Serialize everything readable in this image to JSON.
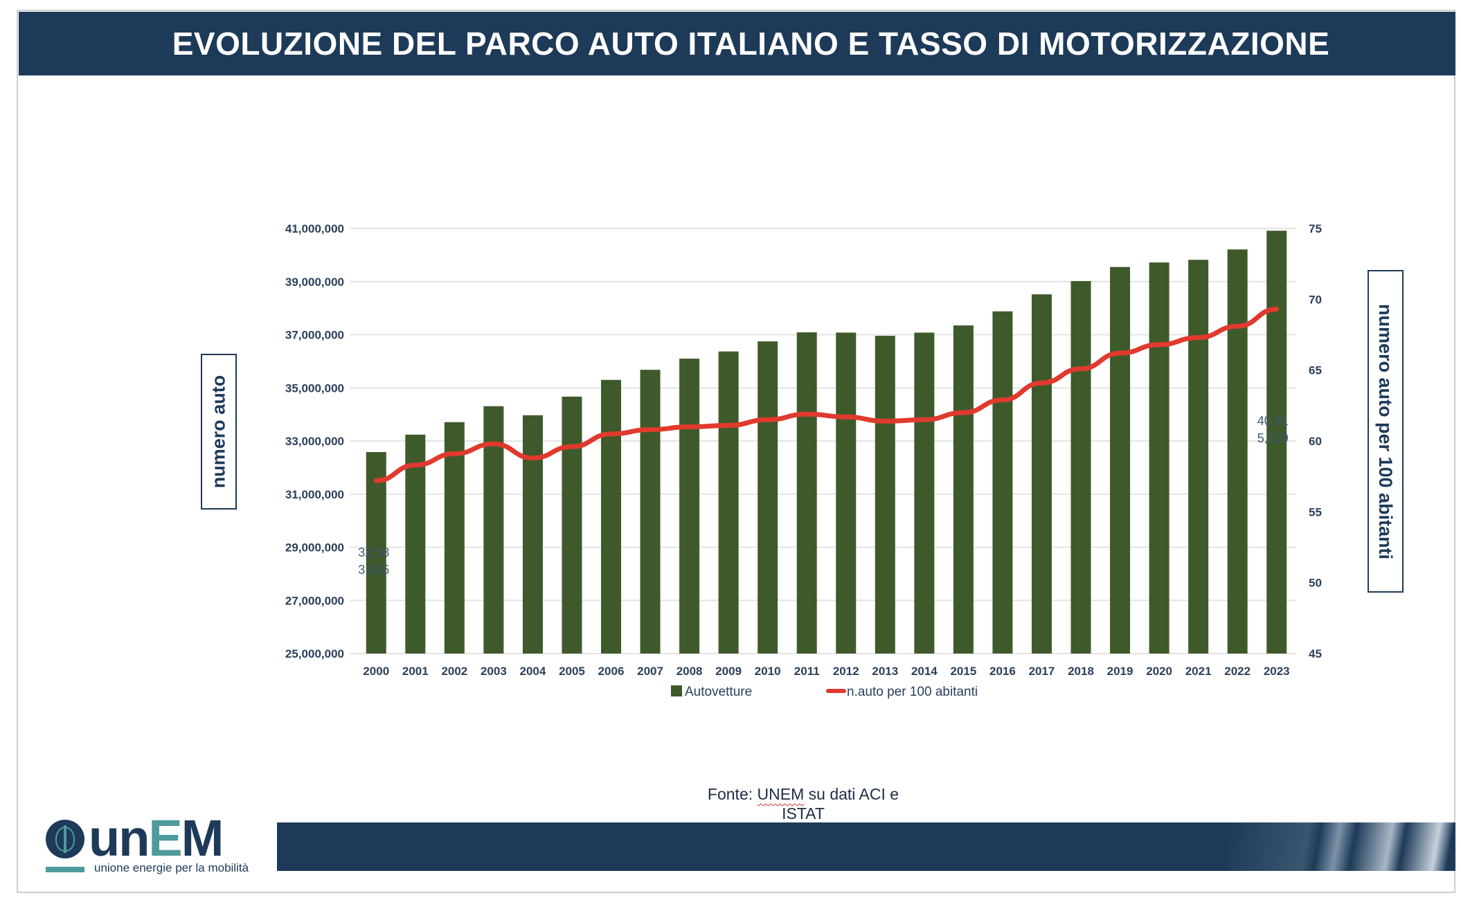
{
  "header": {
    "title": "EVOLUZIONE DEL PARCO AUTO ITALIANO E TASSO DI MOTORIZZAZIONE"
  },
  "axis_titles": {
    "left": "numero auto",
    "right": "numero auto per 100 abitanti"
  },
  "source": {
    "prefix": "Fonte: ",
    "org": "UNEM",
    "line1_rest": " su dati ACI e",
    "line2": "ISTAT"
  },
  "logo": {
    "wordmark_start": "un",
    "wordmark_e": "E",
    "wordmark_end": "M",
    "tagline": "unione energie per la mobilità"
  },
  "colors": {
    "bar": "#3f5a2a",
    "line": "#e03a2e",
    "title_bg": "#1d3a58",
    "axis_text": "#2a3f5a",
    "grid": "#e4e4e4"
  },
  "chart_data": {
    "type": "bar",
    "title": "EVOLUZIONE DEL PARCO AUTO ITALIANO E TASSO DI MOTORIZZAZIONE",
    "xlabel": "",
    "ylabel": "numero auto",
    "y2label": "numero auto per 100 abitanti",
    "categories": [
      "2000",
      "2001",
      "2002",
      "2003",
      "2004",
      "2005",
      "2006",
      "2007",
      "2008",
      "2009",
      "2010",
      "2011",
      "2012",
      "2013",
      "2014",
      "2015",
      "2016",
      "2017",
      "2018",
      "2019",
      "2020",
      "2021",
      "2022",
      "2023"
    ],
    "series": [
      {
        "name": "Autovetture",
        "type": "bar",
        "axis": "left",
        "values": [
          32583815,
          33240000,
          33710000,
          34310000,
          33970000,
          34670000,
          35300000,
          35680000,
          36100000,
          36370000,
          36750000,
          37090000,
          37080000,
          36960000,
          37080000,
          37350000,
          37880000,
          38520000,
          39020000,
          39550000,
          39720000,
          39820000,
          40210000,
          40915229
        ]
      },
      {
        "name": "n.auto per 100 abitanti",
        "type": "line",
        "axis": "right",
        "values": [
          57.2,
          58.3,
          59.1,
          59.8,
          58.8,
          59.6,
          60.5,
          60.8,
          61.0,
          61.1,
          61.5,
          61.9,
          61.7,
          61.4,
          61.5,
          62.0,
          62.9,
          64.1,
          65.1,
          66.2,
          66.8,
          67.3,
          68.1,
          69.3
        ]
      }
    ],
    "ylim": [
      25000000,
      41000000
    ],
    "y_ticks": [
      "25,000,000",
      "27,000,000",
      "29,000,000",
      "31,000,000",
      "33,000,000",
      "35,000,000",
      "37,000,000",
      "39,000,000",
      "41,000,000"
    ],
    "y2lim": [
      45,
      75
    ],
    "y2_ticks": [
      "45",
      "50",
      "55",
      "60",
      "65",
      "70",
      "75"
    ],
    "annotations": [
      {
        "label_line1": "32,58",
        "label_line2": "3,815",
        "category": "2000"
      },
      {
        "label_line1": "40,91",
        "label_line2": "5,229",
        "category": "2023"
      }
    ],
    "legend": [
      "Autovetture",
      "n.auto per 100 abitanti"
    ],
    "legend_position": "bottom-center",
    "grid": true
  }
}
